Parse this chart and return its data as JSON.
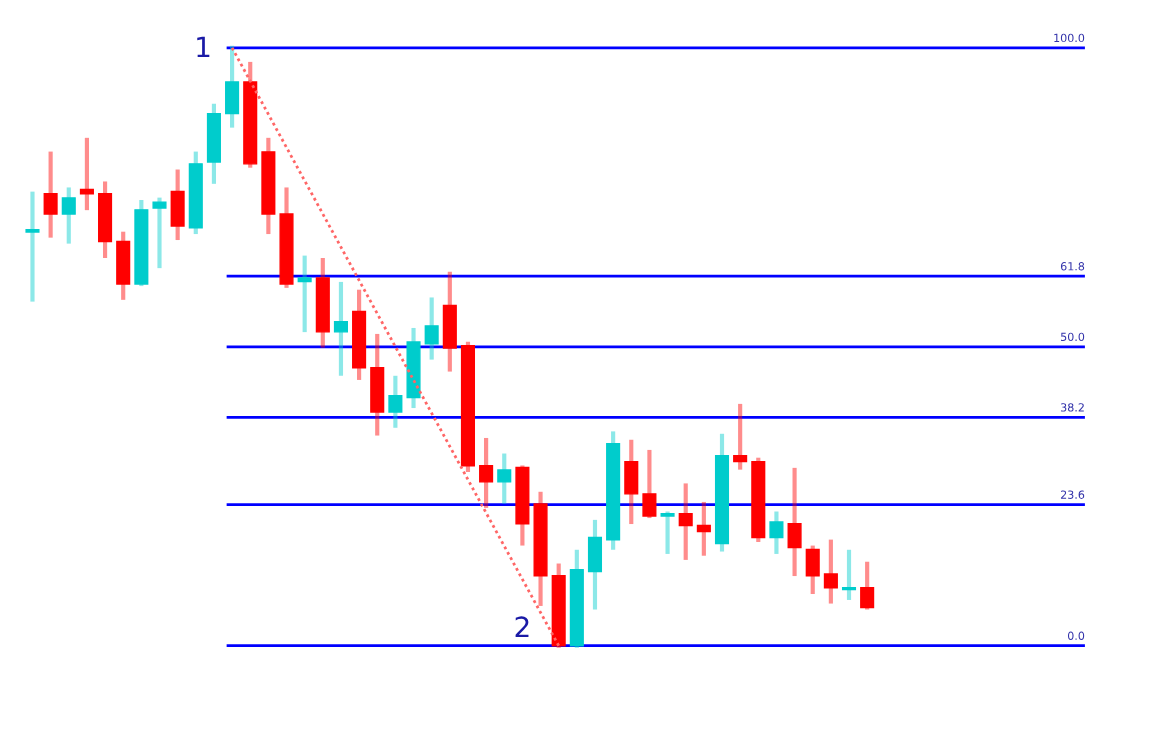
{
  "chart_data": {
    "type": "candlestick",
    "categories": [
      null,
      null,
      null,
      null,
      null,
      null,
      null,
      null,
      null,
      null,
      null,
      null,
      null,
      null,
      null,
      null,
      null,
      null,
      null,
      null,
      null,
      null,
      null,
      null,
      null,
      null,
      null,
      null,
      null,
      null,
      null,
      null,
      null,
      null,
      null,
      null,
      null,
      null,
      null,
      null,
      null,
      null,
      null,
      null,
      null,
      null,
      null
    ],
    "ohlc": [
      [
        69.2,
        75.6,
        57.9,
        69.6
      ],
      [
        75.6,
        82.3,
        68.6,
        72.2
      ],
      [
        72.2,
        76.3,
        67.6,
        74.9
      ],
      [
        76.3,
        84.6,
        73.2,
        75.6
      ],
      [
        75.6,
        77.3,
        65.2,
        67.6
      ],
      [
        67.6,
        68.9,
        58.2,
        60.5
      ],
      [
        60.5,
        74.2,
        60.5,
        72.9
      ],
      [
        73.2,
        74.6,
        63.5,
        74.2
      ],
      [
        76.0,
        79.3,
        68.2,
        70.2
      ],
      [
        69.9,
        82.3,
        69.2,
        80.6
      ],
      [
        80.9,
        90.3,
        77.6,
        89.0
      ],
      [
        89.0,
        100.0,
        87.0,
        94.3
      ],
      [
        94.3,
        97.3,
        80.3,
        80.6
      ],
      [
        82.6,
        84.6,
        69.2,
        72.2
      ],
      [
        72.2,
        76.3,
        60.2,
        60.5
      ],
      [
        60.9,
        64.9,
        52.8,
        61.5
      ],
      [
        61.5,
        64.5,
        50.2,
        52.5
      ],
      [
        52.5,
        60.5,
        45.5,
        54.2
      ],
      [
        55.9,
        59.2,
        44.8,
        46.5
      ],
      [
        46.5,
        51.8,
        35.5,
        39.1
      ],
      [
        39.1,
        44.8,
        36.8,
        41.8
      ],
      [
        41.5,
        52.8,
        40.1,
        50.8
      ],
      [
        50.5,
        57.9,
        48.2,
        53.5
      ],
      [
        56.9,
        62.2,
        46.2,
        49.8
      ],
      [
        50.2,
        50.5,
        29.4,
        30.1
      ],
      [
        30.1,
        34.4,
        23.4,
        27.4
      ],
      [
        27.4,
        31.8,
        24.1,
        29.4
      ],
      [
        29.8,
        29.8,
        17.1,
        20.4
      ],
      [
        23.7,
        25.4,
        7.0,
        11.7
      ],
      [
        11.7,
        13.4,
        0.0,
        0.0
      ],
      [
        0.0,
        15.7,
        0.0,
        12.7
      ],
      [
        12.4,
        20.7,
        6.4,
        18.1
      ],
      [
        17.7,
        35.5,
        16.4,
        33.8
      ],
      [
        30.8,
        34.1,
        20.7,
        25.4
      ],
      [
        25.4,
        32.4,
        21.7,
        21.7
      ],
      [
        21.7,
        22.1,
        15.7,
        22.1
      ],
      [
        22.1,
        26.8,
        14.7,
        20.1
      ],
      [
        20.1,
        23.7,
        15.4,
        19.1
      ],
      [
        17.1,
        35.1,
        16.1,
        31.8
      ],
      [
        31.8,
        40.1,
        29.8,
        30.8
      ],
      [
        30.8,
        31.1,
        17.7,
        18.1
      ],
      [
        18.1,
        22.1,
        15.7,
        20.7
      ],
      [
        20.4,
        29.4,
        12.0,
        16.4
      ],
      [
        16.1,
        16.4,
        9.0,
        11.7
      ],
      [
        12.0,
        17.4,
        7.4,
        9.7
      ],
      [
        9.4,
        15.7,
        8.0,
        9.7
      ],
      [
        9.7,
        13.7,
        6.4,
        6.4
      ]
    ],
    "colors": [
      "#00cccc",
      "#ff0000",
      "#00cccc",
      "#ff0000",
      "#ff0000",
      "#ff0000",
      "#00cccc",
      "#00cccc",
      "#ff0000",
      "#00cccc",
      "#00cccc",
      "#00cccc",
      "#ff0000",
      "#ff0000",
      "#ff0000",
      "#00cccc",
      "#ff0000",
      "#00cccc",
      "#ff0000",
      "#ff0000",
      "#00cccc",
      "#00cccc",
      "#00cccc",
      "#ff0000",
      "#ff0000",
      "#ff0000",
      "#00cccc",
      "#ff0000",
      "#ff0000",
      "#ff0000",
      "#00cccc",
      "#00cccc",
      "#00cccc",
      "#ff0000",
      "#ff0000",
      "#00cccc",
      "#ff0000",
      "#ff0000",
      "#00cccc",
      "#ff0000",
      "#ff0000",
      "#00cccc",
      "#ff0000",
      "#ff0000",
      "#ff0000",
      "#00cccc",
      "#ff0000"
    ],
    "series": [
      {
        "type": "line",
        "color": "#ff6666",
        "line_style": "dotted",
        "values": [
          null,
          null,
          null,
          null,
          null,
          null,
          null,
          null,
          null,
          null,
          null,
          100.0,
          null,
          null,
          null,
          null,
          null,
          null,
          null,
          null,
          null,
          null,
          null,
          null,
          null,
          null,
          null,
          null,
          null,
          0.0,
          null,
          null,
          null,
          null,
          null,
          null,
          null,
          null,
          null,
          null,
          null,
          null,
          null,
          null,
          null,
          null,
          null
        ]
      }
    ],
    "ref_lines": [
      {
        "axis": "y",
        "value": 100.0,
        "label": "100.0",
        "color": "#0000ff"
      },
      {
        "axis": "y",
        "value": 61.8,
        "label": "61.8",
        "color": "#0000ff"
      },
      {
        "axis": "y",
        "value": 50.0,
        "label": "50.0",
        "color": "#0000ff"
      },
      {
        "axis": "y",
        "value": 38.2,
        "label": "38.2",
        "color": "#0000ff"
      },
      {
        "axis": "y",
        "value": 23.6,
        "label": "23.6",
        "color": "#0000ff"
      },
      {
        "axis": "y",
        "value": 0.0,
        "label": "0.0",
        "color": "#0000ff"
      }
    ],
    "annotations": [
      "1",
      "2"
    ],
    "ylim": [
      -15.1,
      108.0
    ],
    "grid": false,
    "legend": false
  }
}
